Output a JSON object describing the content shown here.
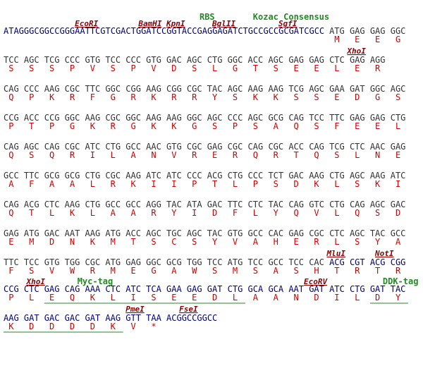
{
  "rows": [
    {
      "labels": [
        "RBS",
        "Kozac Consensus",
        "EcoRI",
        "BamHI",
        "KpnI",
        "BglII",
        "SgfI"
      ],
      "lead": "ATAGGGCGGCCGGGAATTCGTCGACTGGATCCGGTACCGAGGAGATCTGCCGCCGCGATCGCC",
      "codons": [
        "ATG",
        "GAG",
        "GAG",
        "GGC"
      ],
      "aa": [
        "M",
        "E",
        "E",
        "G"
      ]
    },
    {
      "labels": [
        "XhoI"
      ],
      "codons": [
        "TCC",
        "AGC",
        "TCG",
        "CCC",
        "GTG",
        "TCC",
        "CCC",
        "GTG",
        "GAC",
        "AGC",
        "CTG",
        "GGC",
        "ACC",
        "AGC",
        "GAG",
        "GAG",
        "CTC",
        "GAG",
        "AGG"
      ],
      "aa": [
        "S",
        "S",
        "S",
        "P",
        "V",
        "S",
        "P",
        "V",
        "D",
        "S",
        "L",
        "G",
        "T",
        "S",
        "E",
        "E",
        "L",
        "E",
        "R"
      ]
    },
    {
      "labels": [],
      "codons": [
        "CAG",
        "CCC",
        "AAG",
        "CGC",
        "TTC",
        "GGC",
        "CGG",
        "AAG",
        "CGG",
        "CGC",
        "TAC",
        "AGC",
        "AAG",
        "AAG",
        "TCG",
        "AGC",
        "GAA",
        "GAT",
        "GGC",
        "AGC"
      ],
      "aa": [
        "Q",
        "P",
        "K",
        "R",
        "F",
        "G",
        "R",
        "K",
        "R",
        "R",
        "Y",
        "S",
        "K",
        "K",
        "S",
        "S",
        "E",
        "D",
        "G",
        "S"
      ]
    },
    {
      "labels": [],
      "codons": [
        "CCG",
        "ACC",
        "CCG",
        "GGC",
        "AAG",
        "CGC",
        "GGC",
        "AAG",
        "AAG",
        "GGC",
        "AGC",
        "CCC",
        "AGC",
        "GCG",
        "CAG",
        "TCC",
        "TTC",
        "GAG",
        "GAG",
        "CTG"
      ],
      "aa": [
        "P",
        "T",
        "P",
        "G",
        "K",
        "R",
        "G",
        "K",
        "K",
        "G",
        "S",
        "P",
        "S",
        "A",
        "Q",
        "S",
        "F",
        "E",
        "E",
        "L"
      ]
    },
    {
      "labels": [],
      "codons": [
        "CAG",
        "AGC",
        "CAG",
        "CGC",
        "ATC",
        "CTG",
        "GCC",
        "AAC",
        "GTG",
        "CGC",
        "GAG",
        "CGC",
        "CAG",
        "CGC",
        "ACC",
        "CAG",
        "TCG",
        "CTC",
        "AAC",
        "GAG"
      ],
      "aa": [
        "Q",
        "S",
        "Q",
        "R",
        "I",
        "L",
        "A",
        "N",
        "V",
        "R",
        "E",
        "R",
        "Q",
        "R",
        "T",
        "Q",
        "S",
        "L",
        "N",
        "E"
      ]
    },
    {
      "labels": [],
      "codons": [
        "GCC",
        "TTC",
        "GCG",
        "GCG",
        "CTG",
        "CGC",
        "AAG",
        "ATC",
        "ATC",
        "CCC",
        "ACG",
        "CTG",
        "CCC",
        "TCT",
        "GAC",
        "AAG",
        "CTG",
        "AGC",
        "AAG",
        "ATC"
      ],
      "aa": [
        "A",
        "F",
        "A",
        "A",
        "L",
        "R",
        "K",
        "I",
        "I",
        "P",
        "T",
        "L",
        "P",
        "S",
        "D",
        "K",
        "L",
        "S",
        "K",
        "I"
      ]
    },
    {
      "labels": [],
      "codons": [
        "CAG",
        "ACG",
        "CTC",
        "AAG",
        "CTG",
        "GCC",
        "GCC",
        "AGG",
        "TAC",
        "ATA",
        "GAC",
        "TTC",
        "CTC",
        "TAC",
        "CAG",
        "GTC",
        "CTG",
        "CAG",
        "AGC",
        "GAC"
      ],
      "aa": [
        "Q",
        "T",
        "L",
        "K",
        "L",
        "A",
        "A",
        "R",
        "Y",
        "I",
        "D",
        "F",
        "L",
        "Y",
        "Q",
        "V",
        "L",
        "Q",
        "S",
        "D"
      ]
    },
    {
      "labels": [],
      "codons": [
        "GAG",
        "ATG",
        "GAC",
        "AAT",
        "AAG",
        "ATG",
        "ACC",
        "AGC",
        "TGC",
        "AGC",
        "TAC",
        "GTG",
        "GCC",
        "CAC",
        "GAG",
        "CGC",
        "CTC",
        "AGC",
        "TAC",
        "GCC"
      ],
      "aa": [
        "E",
        "M",
        "D",
        "N",
        "K",
        "M",
        "T",
        "S",
        "C",
        "S",
        "Y",
        "V",
        "A",
        "H",
        "E",
        "R",
        "L",
        "S",
        "Y",
        "A"
      ]
    },
    {
      "labels": [
        "MluI",
        "NotI"
      ],
      "codons": [
        "TTC",
        "TCC",
        "GTG",
        "TGG",
        "CGC",
        "ATG",
        "GAG",
        "GGC",
        "GCG",
        "TGG",
        "TCC",
        "ATG",
        "TCC",
        "GCC",
        "TCC",
        "CAC",
        "ACG",
        "CGT",
        "ACG",
        "CGG"
      ],
      "aa": [
        "F",
        "S",
        "V",
        "W",
        "R",
        "M",
        "E",
        "G",
        "A",
        "W",
        "S",
        "M",
        "S",
        "A",
        "S",
        "H",
        "T",
        "R",
        "T",
        "R"
      ]
    },
    {
      "labels": [
        "XhoI",
        "Myc-tag",
        "EcoRV",
        "DDK-tag"
      ],
      "codons": [
        "CCG",
        "CTC",
        "GAG",
        "CAG",
        "AAA",
        "CTC",
        "ATC",
        "TCA",
        "GAA",
        "GAG",
        "GAT",
        "CTG",
        "GCA",
        "GCA",
        "AAT",
        "GAT",
        "ATC",
        "CTG",
        "GAT",
        "TAC"
      ],
      "aa": [
        "P",
        "L",
        "E",
        "Q",
        "K",
        "L",
        "I",
        "S",
        "E",
        "E",
        "D",
        "L",
        "A",
        "A",
        "N",
        "D",
        "I",
        "L",
        "D",
        "Y"
      ]
    },
    {
      "labels": [
        "PmeI",
        "FseI"
      ],
      "codons": [
        "AAG",
        "GAT",
        "GAC",
        "GAC",
        "GAT",
        "AAG",
        "GTT",
        "TAA"
      ],
      "tail": "ACGGCCGGCC",
      "aa": [
        "K",
        "D",
        "D",
        "D",
        "D",
        "K",
        "V",
        "*"
      ]
    }
  ]
}
